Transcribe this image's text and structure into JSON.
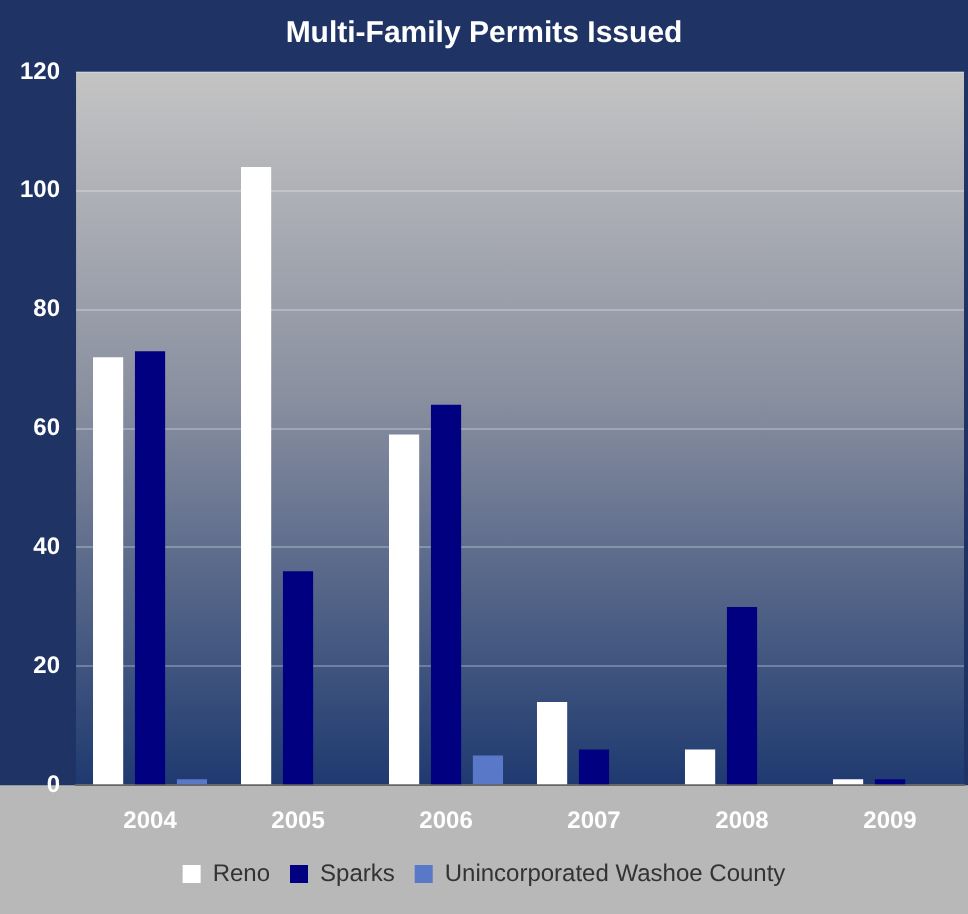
{
  "chart_data": {
    "type": "bar",
    "title": "Multi-Family Permits Issued",
    "categories": [
      "2004",
      "2005",
      "2006",
      "2007",
      "2008",
      "2009"
    ],
    "series": [
      {
        "name": "Reno",
        "color": "#ffffff",
        "values": [
          72,
          104,
          59,
          14,
          6,
          1
        ]
      },
      {
        "name": "Sparks",
        "color": "#000080",
        "values": [
          73,
          36,
          64,
          6,
          30,
          1
        ]
      },
      {
        "name": "Unincorporated Washoe County",
        "color": "#5a78c8",
        "values": [
          1,
          0,
          5,
          0,
          0,
          0
        ]
      }
    ],
    "ylim": [
      0,
      120
    ],
    "yticks": [
      0,
      20,
      40,
      60,
      80,
      100,
      120
    ],
    "grid": "y",
    "legend": "bottom"
  }
}
